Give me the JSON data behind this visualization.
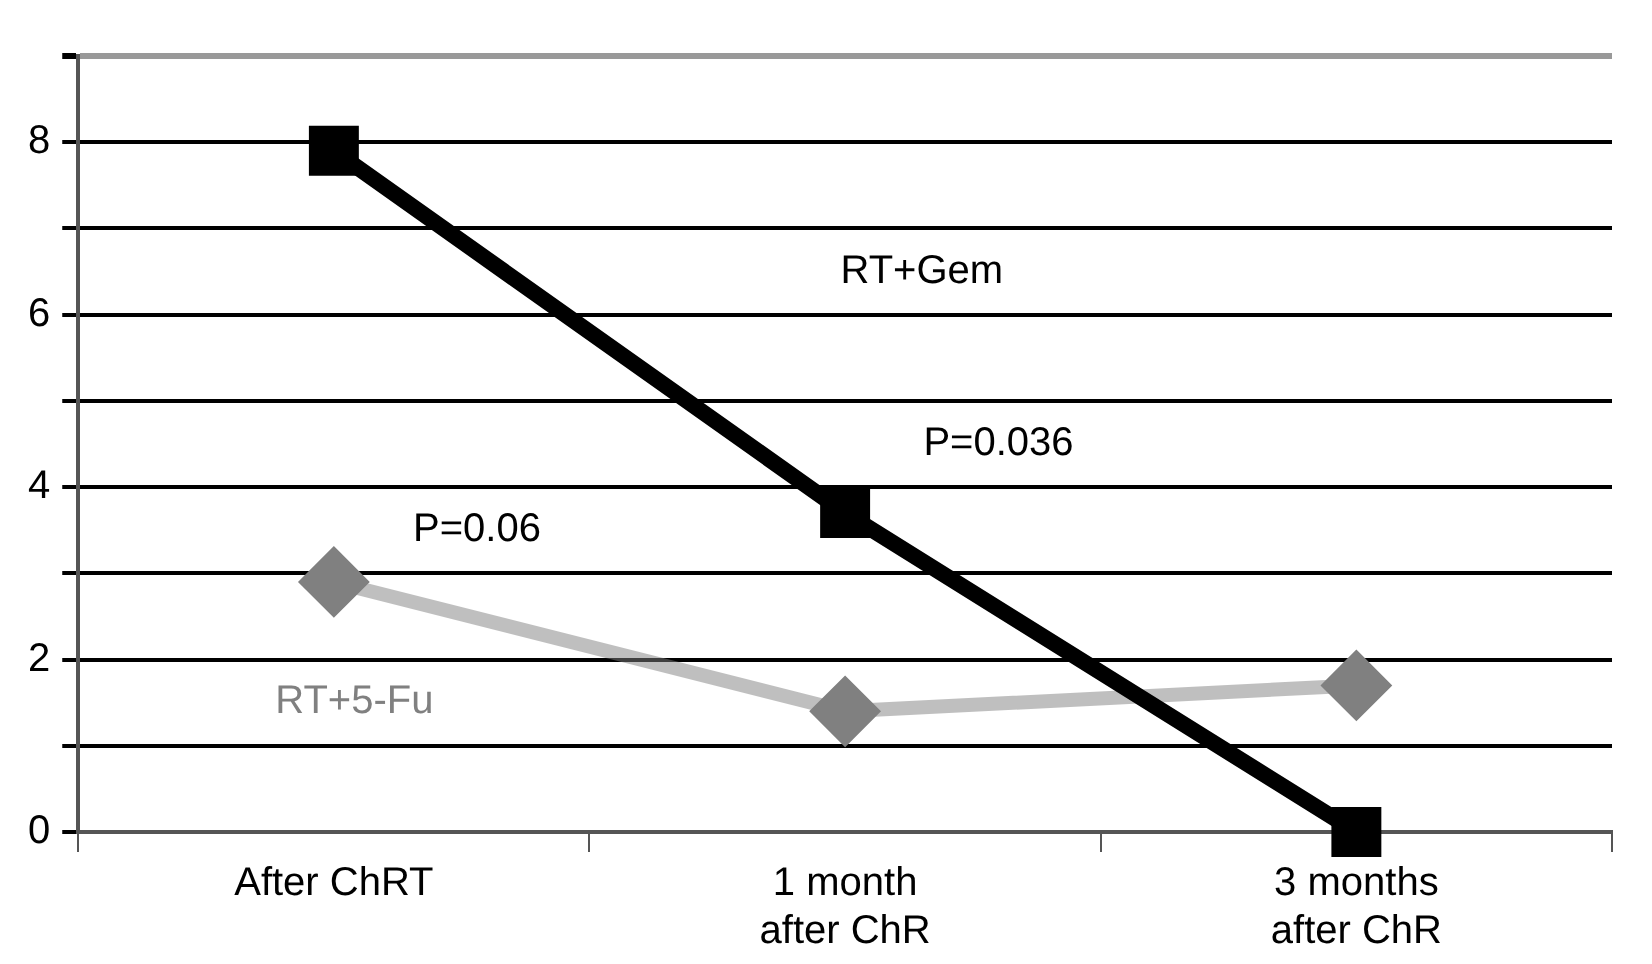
{
  "chart_data": {
    "type": "line",
    "categories": [
      "After ChRT",
      "1 month\nafter ChR",
      "3 months\nafter ChR"
    ],
    "series": [
      {
        "name": "RT+Gem",
        "color": "#000000",
        "values": [
          7.9,
          3.7,
          0
        ],
        "marker": "square"
      },
      {
        "name": "RT+5-Fu",
        "color": "#808080",
        "values": [
          2.9,
          1.4,
          1.7
        ],
        "marker": "diamond"
      }
    ],
    "ylim": [
      0,
      9
    ],
    "yticks": [
      0,
      {
        "value": 1,
        "label": null
      },
      2,
      {
        "value": 3,
        "label": null
      },
      4,
      {
        "value": 5,
        "label": null
      },
      6,
      {
        "value": 7,
        "label": null
      },
      8,
      {
        "value": 9,
        "label": null
      }
    ],
    "grid": "y",
    "legend": false,
    "annotations": [
      "P=0.036",
      "P=0.06"
    ]
  }
}
